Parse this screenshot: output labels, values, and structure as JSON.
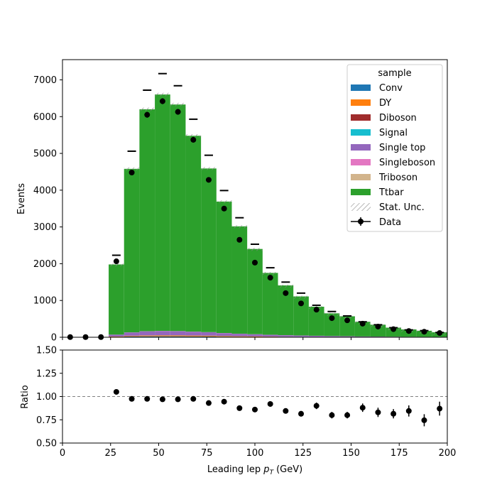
{
  "chart_data": {
    "type": "bar",
    "subtype": "stacked-histogram-with-ratio",
    "x_edges": [
      0,
      8,
      16,
      24,
      32,
      40,
      48,
      56,
      64,
      72,
      80,
      88,
      96,
      104,
      112,
      120,
      128,
      136,
      144,
      152,
      160,
      168,
      176,
      184,
      192,
      200
    ],
    "x_centers": [
      4,
      12,
      20,
      28,
      36,
      44,
      52,
      60,
      68,
      76,
      84,
      92,
      100,
      108,
      116,
      124,
      132,
      140,
      148,
      156,
      164,
      172,
      180,
      188,
      196
    ],
    "xlabel": "Leading lep",
    "xlabel_symbol": "p",
    "xlabel_subscript": "T",
    "xlabel_unit": "(GeV)",
    "xlim": [
      0,
      200
    ],
    "x_ticks": [
      0,
      25,
      50,
      75,
      100,
      125,
      150,
      175,
      200
    ],
    "main_panel": {
      "ylabel": "Events",
      "ylim": [
        0,
        7550
      ],
      "y_ticks": [
        0,
        1000,
        2000,
        3000,
        4000,
        5000,
        6000,
        7000
      ],
      "legend_title": "sample",
      "legend_position": "top-right",
      "series": [
        {
          "name": "Conv",
          "color": "#1f77b4",
          "values": [
            0,
            0,
            0,
            10,
            20,
            25,
            25,
            25,
            22,
            20,
            15,
            12,
            10,
            8,
            6,
            5,
            4,
            3,
            3,
            2,
            2,
            1,
            1,
            1,
            1
          ]
        },
        {
          "name": "DY",
          "color": "#ff7f0e",
          "values": [
            0,
            0,
            0,
            8,
            15,
            20,
            22,
            22,
            20,
            18,
            15,
            12,
            10,
            8,
            6,
            5,
            4,
            3,
            3,
            2,
            2,
            2,
            1,
            1,
            1
          ]
        },
        {
          "name": "Diboson",
          "color": "#a02c2c",
          "values": [
            0,
            0,
            0,
            2,
            4,
            5,
            6,
            6,
            6,
            5,
            5,
            4,
            4,
            3,
            3,
            2,
            2,
            2,
            2,
            1,
            1,
            1,
            1,
            1,
            1
          ]
        },
        {
          "name": "Signal",
          "color": "#17becf",
          "values": [
            0,
            0,
            0,
            1,
            2,
            2,
            3,
            3,
            3,
            3,
            3,
            2,
            2,
            2,
            2,
            2,
            1,
            1,
            1,
            1,
            1,
            1,
            1,
            1,
            1
          ]
        },
        {
          "name": "Single top",
          "color": "#9467bd",
          "values": [
            0,
            0,
            0,
            50,
            90,
            110,
            115,
            110,
            100,
            90,
            75,
            65,
            55,
            45,
            38,
            32,
            27,
            22,
            18,
            15,
            12,
            10,
            8,
            7,
            6
          ]
        },
        {
          "name": "Singleboson",
          "color": "#e377c2",
          "values": [
            0,
            0,
            0,
            1,
            2,
            2,
            2,
            2,
            2,
            2,
            2,
            1,
            1,
            1,
            1,
            1,
            1,
            1,
            1,
            1,
            1,
            1,
            1,
            1,
            1
          ]
        },
        {
          "name": "Triboson",
          "color": "#d2b48c",
          "values": [
            0,
            0,
            0,
            0,
            0,
            1,
            1,
            1,
            1,
            1,
            1,
            1,
            1,
            1,
            1,
            1,
            1,
            1,
            1,
            0,
            0,
            0,
            0,
            0,
            0
          ]
        },
        {
          "name": "Ttbar",
          "color": "#2ca02c",
          "values": [
            0,
            0,
            0,
            1908,
            4447,
            6035,
            6428,
            6161,
            5326,
            4451,
            3574,
            2919,
            2318,
            1682,
            1353,
            1062,
            790,
            617,
            541,
            398,
            322,
            245,
            200,
            164,
            125
          ]
        }
      ],
      "stat_unc_label": "Stat. Unc.",
      "stat_unc": [
        0,
        0,
        0,
        25,
        40,
        45,
        45,
        45,
        42,
        40,
        35,
        30,
        28,
        25,
        22,
        20,
        18,
        15,
        14,
        12,
        10,
        9,
        8,
        7,
        6
      ],
      "data": {
        "name": "Data",
        "values": [
          5,
          5,
          5,
          2065,
          4480,
          6050,
          6420,
          6130,
          5370,
          4280,
          3500,
          2650,
          2030,
          1620,
          1200,
          920,
          750,
          520,
          460,
          370,
          290,
          220,
          170,
          150,
          115
        ],
        "errors": [
          2,
          2,
          2,
          45,
          67,
          78,
          80,
          78,
          73,
          65,
          59,
          51,
          45,
          40,
          35,
          30,
          27,
          23,
          21,
          19,
          17,
          15,
          13,
          12,
          11
        ]
      },
      "markers_above": [
        null,
        null,
        null,
        2230,
        5060,
        6720,
        7170,
        6840,
        5930,
        4950,
        3990,
        3250,
        2530,
        1890,
        1500,
        1200,
        870,
        700,
        580,
        420,
        340,
        260,
        200,
        180,
        130
      ]
    },
    "ratio_panel": {
      "ylabel": "Ratio",
      "ylim": [
        0.5,
        1.5
      ],
      "y_ticks": [
        "0.50",
        "0.75",
        "1.00",
        "1.25",
        "1.50"
      ],
      "reference_line": 1.0,
      "values": [
        1.05,
        0.975,
        0.975,
        0.97,
        0.97,
        0.975,
        0.93,
        0.945,
        0.875,
        0.86,
        0.92,
        0.845,
        0.815,
        0.9,
        0.8,
        0.8,
        0.88,
        0.83,
        0.815,
        0.845,
        0.745,
        0.87
      ],
      "x": [
        28,
        36,
        44,
        52,
        60,
        68,
        76,
        84,
        92,
        100,
        108,
        116,
        124,
        132,
        140,
        148,
        156,
        164,
        172,
        180,
        188,
        196
      ],
      "errors": [
        0.02,
        0.015,
        0.013,
        0.012,
        0.013,
        0.014,
        0.016,
        0.018,
        0.02,
        0.022,
        0.025,
        0.028,
        0.03,
        0.035,
        0.035,
        0.035,
        0.045,
        0.05,
        0.05,
        0.06,
        0.065,
        0.075
      ]
    }
  }
}
